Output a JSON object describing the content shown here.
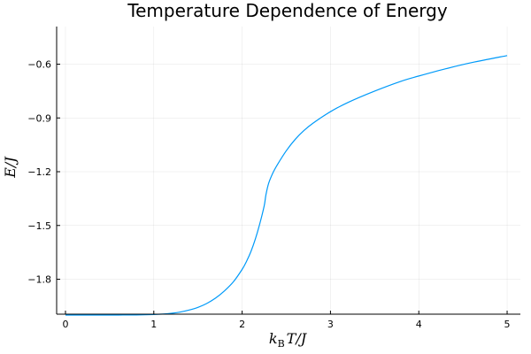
{
  "chart_data": {
    "type": "line",
    "title": "Temperature Dependence of Energy",
    "xlabel": "k_B T/J",
    "ylabel": "E/J",
    "xlim": [
      -0.1,
      5.15
    ],
    "ylim": [
      -1.995,
      -0.39
    ],
    "x_ticks": [
      0,
      1,
      2,
      3,
      4,
      5
    ],
    "x_tick_labels": [
      "0",
      "1",
      "2",
      "3",
      "4",
      "5"
    ],
    "y_ticks": [
      -1.8,
      -1.5,
      -1.2,
      -0.9,
      -0.6
    ],
    "y_tick_labels": [
      "-1.8",
      "-1.5",
      "-1.2",
      "-0.9",
      "-0.6"
    ],
    "grid": true,
    "legend": false,
    "series": [
      {
        "name": "E/J",
        "color": "#009AF9",
        "x": [
          0.0,
          0.2,
          0.4,
          0.6,
          0.8,
          1.0,
          1.1,
          1.2,
          1.3,
          1.4,
          1.5,
          1.6,
          1.7,
          1.8,
          1.9,
          2.0,
          2.05,
          2.1,
          2.15,
          2.2,
          2.25,
          2.269,
          2.3,
          2.35,
          2.4,
          2.5,
          2.6,
          2.7,
          2.8,
          3.0,
          3.2,
          3.5,
          3.8,
          4.0,
          4.3,
          4.6,
          5.0
        ],
        "values": [
          -1.9999,
          -1.9999,
          -1.9999,
          -1.9998,
          -1.9993,
          -1.997,
          -1.9945,
          -1.99,
          -1.983,
          -1.972,
          -1.957,
          -1.935,
          -1.905,
          -1.865,
          -1.815,
          -1.745,
          -1.7,
          -1.645,
          -1.575,
          -1.49,
          -1.39,
          -1.33,
          -1.265,
          -1.205,
          -1.16,
          -1.083,
          -1.02,
          -0.97,
          -0.93,
          -0.865,
          -0.813,
          -0.75,
          -0.695,
          -0.666,
          -0.626,
          -0.591,
          -0.552
        ]
      }
    ]
  }
}
